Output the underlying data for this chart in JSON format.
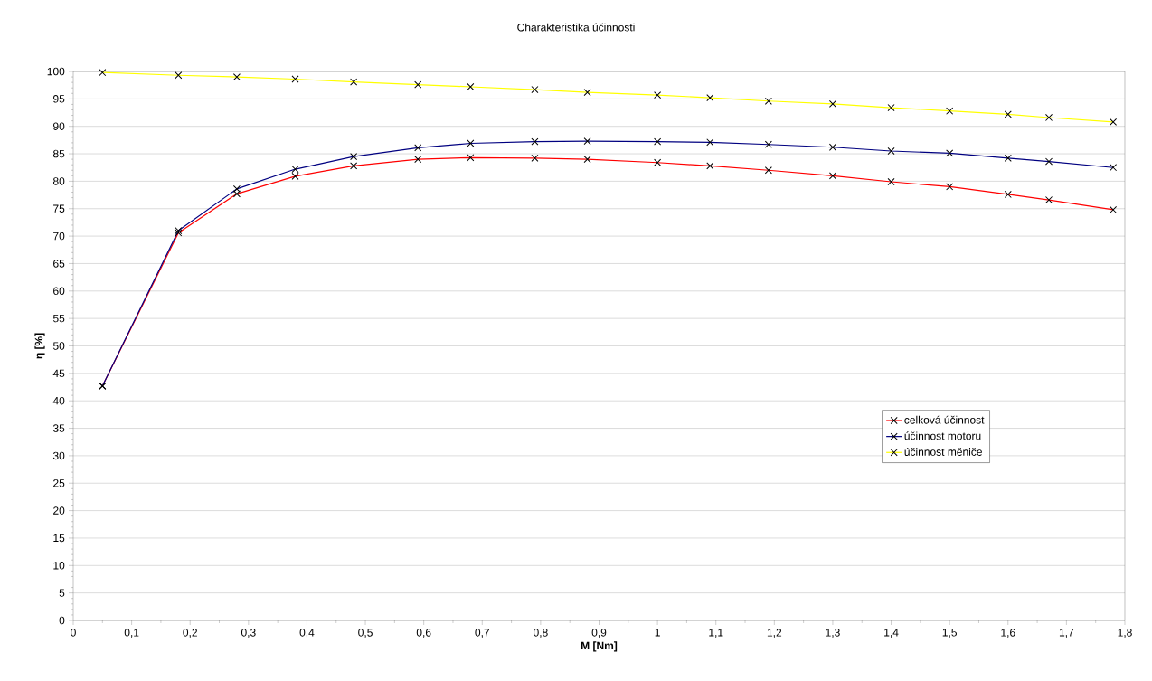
{
  "chart_data": {
    "type": "line",
    "title": "Charakteristika účinnosti",
    "xlabel": "M [Nm]",
    "ylabel": "η [%]",
    "x": [
      0.05,
      0.18,
      0.28,
      0.38,
      0.48,
      0.59,
      0.68,
      0.79,
      0.88,
      1.0,
      1.09,
      1.19,
      1.3,
      1.4,
      1.5,
      1.6,
      1.67,
      1.78
    ],
    "series": [
      {
        "name": "celková účinnost",
        "color": "#ff0000",
        "values": [
          42.7,
          70.6,
          77.7,
          80.9,
          82.8,
          84.0,
          84.3,
          84.2,
          84.0,
          83.4,
          82.8,
          82.0,
          81.0,
          79.9,
          79.0,
          77.6,
          76.6,
          74.8
        ]
      },
      {
        "name": "účinnost motoru",
        "color": "#000080",
        "values": [
          42.7,
          71.0,
          78.6,
          82.2,
          84.5,
          86.1,
          86.9,
          87.2,
          87.3,
          87.2,
          87.1,
          86.7,
          86.2,
          85.5,
          85.1,
          84.2,
          83.6,
          82.5
        ]
      },
      {
        "name": "účinnost měniče",
        "color": "#ffff00",
        "values": [
          99.8,
          99.3,
          99.0,
          98.6,
          98.1,
          97.6,
          97.2,
          96.7,
          96.2,
          95.7,
          95.2,
          94.6,
          94.1,
          93.4,
          92.8,
          92.2,
          91.6,
          90.8
        ]
      }
    ],
    "xlim": [
      0,
      1.8
    ],
    "ylim": [
      0,
      100
    ],
    "xticks": [
      0,
      {
        "value": 0.1,
        "label": "0,1"
      },
      {
        "value": 0.2,
        "label": "0,2"
      },
      {
        "value": 0.3,
        "label": "0,3"
      },
      {
        "value": 0.4,
        "label": "0,4"
      },
      {
        "value": 0.5,
        "label": "0,5"
      },
      {
        "value": 0.6,
        "label": "0,6"
      },
      {
        "value": 0.7,
        "label": "0,7"
      },
      {
        "value": 0.8,
        "label": "0,8"
      },
      {
        "value": 0.9,
        "label": "0,9"
      },
      1,
      {
        "value": 1.1,
        "label": "1,1"
      },
      {
        "value": 1.2,
        "label": "1,2"
      },
      {
        "value": 1.3,
        "label": "1,3"
      },
      {
        "value": 1.4,
        "label": "1,4"
      },
      {
        "value": 1.5,
        "label": "1,5"
      },
      {
        "value": 1.6,
        "label": "1,6"
      },
      {
        "value": 1.7,
        "label": "1,7"
      },
      {
        "value": 1.8,
        "label": "1,8"
      }
    ],
    "yticks": [
      0,
      5,
      10,
      15,
      20,
      25,
      30,
      35,
      40,
      45,
      50,
      55,
      60,
      65,
      70,
      75,
      80,
      85,
      90,
      95,
      100
    ],
    "grid": "y",
    "legend": "right",
    "marker": "cross",
    "line_style": "solid"
  }
}
